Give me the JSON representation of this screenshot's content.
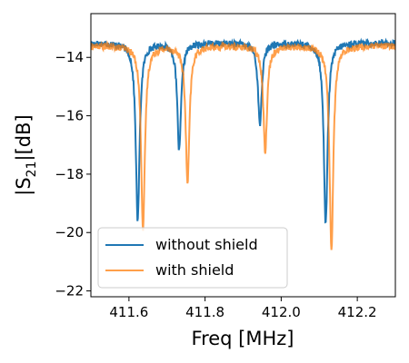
{
  "chart_data": {
    "type": "line",
    "xlabel": "Freq [MHz]",
    "ylabel_main": "|S",
    "ylabel_sub": "21",
    "ylabel_tail": "|[dB]",
    "xlim": [
      411.5,
      412.3
    ],
    "ylim": [
      -22.2,
      -12.5
    ],
    "x_ticks": [
      411.6,
      411.8,
      412.0,
      412.2
    ],
    "x_tick_labels": [
      "411.6",
      "411.8",
      "412.0",
      "412.2"
    ],
    "y_ticks": [
      -22,
      -20,
      -18,
      -16,
      -14
    ],
    "y_tick_labels": [
      "−22",
      "−20",
      "−18",
      "−16",
      "−14"
    ],
    "legend": {
      "placement": "lower-left"
    },
    "series": [
      {
        "name": "without shield",
        "color": "#1f77b4",
        "baseline": -13.5,
        "dips": [
          {
            "center": 411.623,
            "min": -19.6,
            "width": 0.006
          },
          {
            "center": 411.732,
            "min": -17.2,
            "width": 0.006
          },
          {
            "center": 411.944,
            "min": -16.3,
            "width": 0.006
          },
          {
            "center": 412.117,
            "min": -19.7,
            "width": 0.006
          }
        ]
      },
      {
        "name": "with shield",
        "color": "#ff7f0e",
        "baseline": -13.6,
        "dips": [
          {
            "center": 411.637,
            "min": -19.9,
            "width": 0.006
          },
          {
            "center": 411.754,
            "min": -18.3,
            "width": 0.006
          },
          {
            "center": 411.958,
            "min": -17.2,
            "width": 0.006
          },
          {
            "center": 412.132,
            "min": -20.6,
            "width": 0.006
          }
        ]
      }
    ]
  }
}
